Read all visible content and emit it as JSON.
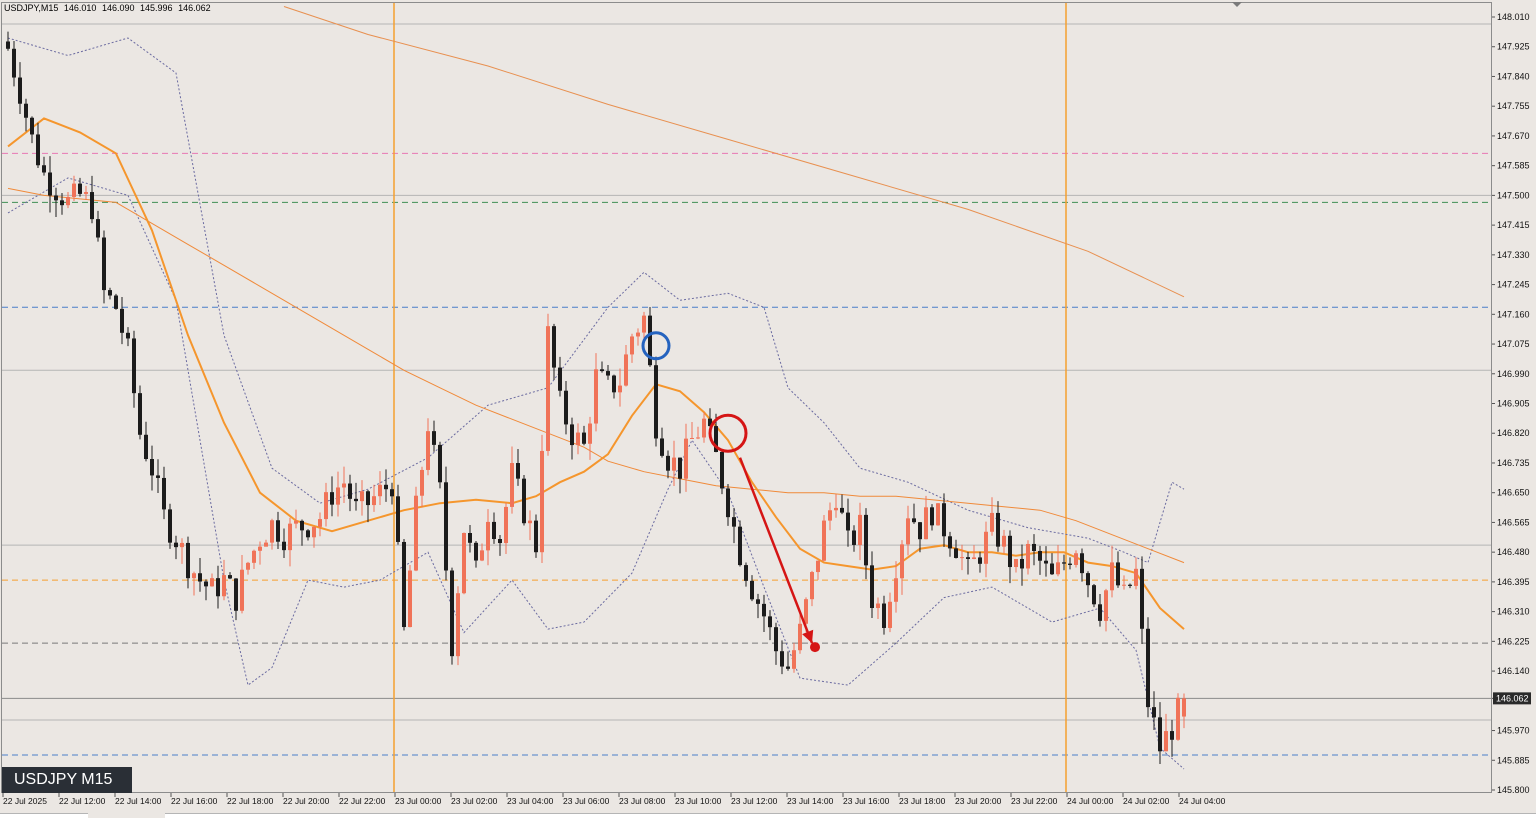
{
  "header": {
    "symbol": "USDJPY,M15",
    "open": "146.010",
    "high": "146.090",
    "low": "145.996",
    "close": "146.062"
  },
  "badge": "USDJPY M15",
  "current_price_label": "146.062",
  "colors": {
    "background": "#ebe7e3",
    "bull": "#f07358",
    "bear": "#1c1c1c",
    "ema_fast": "#f5962d",
    "ma_slow": "#f08a3a",
    "ma_long": "#e89050",
    "bollinger": "#6a6aa0",
    "session_line": "#f5a030",
    "annotation_red": "#d51515",
    "annotation_blue": "#2563bf"
  },
  "chart_data": {
    "type": "candlestick",
    "symbol": "USDJPY",
    "timeframe": "M15",
    "y_axis": {
      "min": 145.8,
      "max": 148.01,
      "ticks": [
        "148.010",
        "147.925",
        "147.840",
        "147.755",
        "147.670",
        "147.585",
        "147.500",
        "147.415",
        "147.330",
        "147.245",
        "147.160",
        "147.075",
        "146.990",
        "146.905",
        "146.820",
        "146.735",
        "146.650",
        "146.565",
        "146.480",
        "146.395",
        "146.310",
        "146.225",
        "146.140",
        "146.062",
        "145.970",
        "145.885",
        "145.800"
      ]
    },
    "x_axis": {
      "labels": [
        "22 Jul 2025",
        "22 Jul 12:00",
        "22 Jul 14:00",
        "22 Jul 16:00",
        "22 Jul 18:00",
        "22 Jul 20:00",
        "22 Jul 22:00",
        "23 Jul 00:00",
        "23 Jul 02:00",
        "23 Jul 04:00",
        "23 Jul 06:00",
        "23 Jul 08:00",
        "23 Jul 10:00",
        "23 Jul 12:00",
        "23 Jul 14:00",
        "23 Jul 16:00",
        "23 Jul 18:00",
        "23 Jul 20:00",
        "23 Jul 22:00",
        "24 Jul 00:00",
        "24 Jul 02:00",
        "24 Jul 04:00"
      ]
    },
    "close_path": [
      [
        0,
        147.92
      ],
      [
        2,
        147.8
      ],
      [
        4,
        147.66
      ],
      [
        6,
        147.56
      ],
      [
        8,
        147.52
      ],
      [
        10,
        147.48
      ],
      [
        12,
        147.5
      ],
      [
        14,
        147.47
      ],
      [
        16,
        147.22
      ],
      [
        18,
        147.18
      ],
      [
        20,
        147.05
      ],
      [
        22,
        146.82
      ],
      [
        24,
        146.72
      ],
      [
        26,
        146.58
      ],
      [
        28,
        146.52
      ],
      [
        30,
        146.45
      ],
      [
        32,
        146.4
      ],
      [
        34,
        146.37
      ],
      [
        36,
        146.4
      ],
      [
        38,
        146.35
      ],
      [
        40,
        146.45
      ],
      [
        42,
        146.52
      ],
      [
        44,
        146.56
      ],
      [
        46,
        146.53
      ],
      [
        48,
        146.55
      ],
      [
        50,
        146.56
      ],
      [
        52,
        146.58
      ],
      [
        54,
        146.65
      ],
      [
        56,
        146.68
      ],
      [
        58,
        146.6
      ],
      [
        60,
        146.62
      ],
      [
        62,
        146.65
      ],
      [
        64,
        146.68
      ],
      [
        66,
        146.25
      ],
      [
        68,
        146.6
      ],
      [
        70,
        146.85
      ],
      [
        72,
        146.65
      ],
      [
        74,
        146.22
      ],
      [
        76,
        146.55
      ],
      [
        78,
        146.42
      ],
      [
        80,
        146.6
      ],
      [
        82,
        146.52
      ],
      [
        84,
        146.7
      ],
      [
        86,
        146.6
      ],
      [
        88,
        146.5
      ],
      [
        90,
        147.1
      ],
      [
        92,
        146.9
      ],
      [
        94,
        146.82
      ],
      [
        96,
        146.78
      ],
      [
        98,
        146.98
      ],
      [
        100,
        146.95
      ],
      [
        102,
        146.97
      ],
      [
        104,
        147.1
      ],
      [
        106,
        147.15
      ],
      [
        108,
        146.85
      ],
      [
        110,
        146.75
      ],
      [
        112,
        146.72
      ],
      [
        114,
        146.8
      ],
      [
        116,
        146.85
      ],
      [
        118,
        146.75
      ],
      [
        120,
        146.62
      ],
      [
        122,
        146.48
      ],
      [
        124,
        146.38
      ],
      [
        126,
        146.3
      ],
      [
        128,
        146.2
      ],
      [
        130,
        146.15
      ],
      [
        132,
        146.25
      ],
      [
        134,
        146.4
      ],
      [
        136,
        146.55
      ],
      [
        138,
        146.65
      ],
      [
        140,
        146.5
      ],
      [
        142,
        146.55
      ],
      [
        144,
        146.35
      ],
      [
        146,
        146.3
      ],
      [
        148,
        146.45
      ],
      [
        150,
        146.6
      ],
      [
        152,
        146.55
      ],
      [
        154,
        146.6
      ],
      [
        156,
        146.55
      ],
      [
        158,
        146.5
      ],
      [
        160,
        146.42
      ],
      [
        162,
        146.48
      ],
      [
        164,
        146.55
      ],
      [
        166,
        146.5
      ],
      [
        168,
        146.42
      ],
      [
        170,
        146.48
      ],
      [
        172,
        146.45
      ],
      [
        174,
        146.4
      ],
      [
        176,
        146.45
      ],
      [
        178,
        146.5
      ],
      [
        180,
        146.4
      ],
      [
        182,
        146.32
      ],
      [
        184,
        146.42
      ],
      [
        186,
        146.35
      ],
      [
        188,
        146.42
      ],
      [
        190,
        146.05
      ],
      [
        192,
        145.92
      ],
      [
        194,
        145.98
      ],
      [
        196,
        146.06
      ]
    ],
    "bollinger_upper": [
      [
        0,
        147.95
      ],
      [
        10,
        147.9
      ],
      [
        20,
        147.95
      ],
      [
        28,
        147.85
      ],
      [
        36,
        147.1
      ],
      [
        44,
        146.72
      ],
      [
        52,
        146.62
      ],
      [
        60,
        146.66
      ],
      [
        70,
        146.75
      ],
      [
        80,
        146.9
      ],
      [
        90,
        146.95
      ],
      [
        100,
        147.18
      ],
      [
        106,
        147.28
      ],
      [
        112,
        147.2
      ],
      [
        120,
        147.22
      ],
      [
        126,
        147.18
      ],
      [
        130,
        146.95
      ],
      [
        136,
        146.85
      ],
      [
        142,
        146.72
      ],
      [
        150,
        146.68
      ],
      [
        160,
        146.6
      ],
      [
        170,
        146.55
      ],
      [
        180,
        146.52
      ],
      [
        186,
        146.48
      ],
      [
        190,
        146.45
      ],
      [
        194,
        146.68
      ],
      [
        196,
        146.66
      ]
    ],
    "bollinger_lower": [
      [
        0,
        147.45
      ],
      [
        10,
        147.55
      ],
      [
        20,
        147.5
      ],
      [
        28,
        147.2
      ],
      [
        36,
        146.4
      ],
      [
        40,
        146.1
      ],
      [
        44,
        146.15
      ],
      [
        50,
        146.4
      ],
      [
        56,
        146.38
      ],
      [
        62,
        146.4
      ],
      [
        70,
        146.48
      ],
      [
        76,
        146.25
      ],
      [
        84,
        146.4
      ],
      [
        90,
        146.26
      ],
      [
        96,
        146.28
      ],
      [
        104,
        146.42
      ],
      [
        110,
        146.66
      ],
      [
        114,
        146.8
      ],
      [
        120,
        146.65
      ],
      [
        126,
        146.38
      ],
      [
        132,
        146.12
      ],
      [
        140,
        146.1
      ],
      [
        148,
        146.22
      ],
      [
        156,
        146.35
      ],
      [
        164,
        146.38
      ],
      [
        174,
        146.28
      ],
      [
        182,
        146.32
      ],
      [
        188,
        146.2
      ],
      [
        192,
        145.92
      ],
      [
        196,
        145.86
      ]
    ],
    "ema_fast": [
      [
        0,
        147.64
      ],
      [
        6,
        147.72
      ],
      [
        12,
        147.68
      ],
      [
        18,
        147.62
      ],
      [
        24,
        147.4
      ],
      [
        30,
        147.1
      ],
      [
        36,
        146.85
      ],
      [
        42,
        146.65
      ],
      [
        48,
        146.57
      ],
      [
        54,
        146.54
      ],
      [
        60,
        146.57
      ],
      [
        66,
        146.6
      ],
      [
        72,
        146.62
      ],
      [
        78,
        146.63
      ],
      [
        84,
        146.62
      ],
      [
        88,
        146.64
      ],
      [
        92,
        146.68
      ],
      [
        96,
        146.71
      ],
      [
        100,
        146.76
      ],
      [
        104,
        146.87
      ],
      [
        108,
        146.96
      ],
      [
        112,
        146.94
      ],
      [
        116,
        146.88
      ],
      [
        120,
        146.8
      ],
      [
        124,
        146.68
      ],
      [
        128,
        146.58
      ],
      [
        132,
        146.49
      ],
      [
        136,
        146.45
      ],
      [
        140,
        146.44
      ],
      [
        144,
        146.43
      ],
      [
        148,
        146.44
      ],
      [
        152,
        146.49
      ],
      [
        156,
        146.5
      ],
      [
        160,
        146.48
      ],
      [
        164,
        146.48
      ],
      [
        168,
        146.47
      ],
      [
        172,
        146.48
      ],
      [
        176,
        146.48
      ],
      [
        180,
        146.45
      ],
      [
        184,
        146.44
      ],
      [
        188,
        146.42
      ],
      [
        192,
        146.32
      ],
      [
        196,
        146.26
      ]
    ],
    "ma_slow": [
      [
        0,
        147.52
      ],
      [
        6,
        147.5
      ],
      [
        12,
        147.49
      ],
      [
        18,
        147.48
      ],
      [
        24,
        147.42
      ],
      [
        30,
        147.36
      ],
      [
        36,
        147.3
      ],
      [
        42,
        147.24
      ],
      [
        48,
        147.18
      ],
      [
        54,
        147.12
      ],
      [
        60,
        147.06
      ],
      [
        66,
        147.0
      ],
      [
        72,
        146.95
      ],
      [
        78,
        146.9
      ],
      [
        84,
        146.86
      ],
      [
        90,
        146.82
      ],
      [
        96,
        146.78
      ],
      [
        100,
        146.74
      ],
      [
        106,
        146.71
      ],
      [
        112,
        146.69
      ],
      [
        118,
        146.67
      ],
      [
        124,
        146.66
      ],
      [
        130,
        146.65
      ],
      [
        136,
        146.65
      ],
      [
        142,
        146.64
      ],
      [
        148,
        146.64
      ],
      [
        154,
        146.63
      ],
      [
        160,
        146.62
      ],
      [
        166,
        146.61
      ],
      [
        172,
        146.6
      ],
      [
        178,
        146.57
      ],
      [
        184,
        146.53
      ],
      [
        190,
        146.49
      ],
      [
        196,
        146.45
      ]
    ],
    "ma_long": [
      [
        46,
        148.04
      ],
      [
        60,
        147.96
      ],
      [
        80,
        147.87
      ],
      [
        100,
        147.76
      ],
      [
        120,
        147.66
      ],
      [
        140,
        147.56
      ],
      [
        160,
        147.46
      ],
      [
        180,
        147.34
      ],
      [
        196,
        147.21
      ]
    ],
    "horizontal_levels": [
      {
        "price": 147.62,
        "color": "#e879b4",
        "style": "dashed"
      },
      {
        "price": 147.48,
        "color": "#3f8f55",
        "style": "dashed"
      },
      {
        "price": 147.18,
        "color": "#4b7fc9",
        "style": "dashed"
      },
      {
        "price": 146.4,
        "color": "#f5a030",
        "style": "dashed"
      },
      {
        "price": 146.22,
        "color": "#7a7a7a",
        "style": "dashed"
      },
      {
        "price": 145.9,
        "color": "#4b7fc9",
        "style": "dashed"
      },
      {
        "price": 147.99,
        "color": "#b5b5b5",
        "style": "solid"
      },
      {
        "price": 147.5,
        "color": "#b5b5b5",
        "style": "solid"
      },
      {
        "price": 147.0,
        "color": "#b5b5b5",
        "style": "solid"
      },
      {
        "price": 146.5,
        "color": "#b5b5b5",
        "style": "solid"
      },
      {
        "price": 146.0,
        "color": "#b5b5b5",
        "style": "solid"
      },
      {
        "price": 146.062,
        "color": "#8a8a8a",
        "style": "solid"
      }
    ],
    "session_lines": [
      "23 Jul 00:00",
      "24 Jul 00:00"
    ],
    "annotations": [
      {
        "type": "circle",
        "color": "blue",
        "bar": 108,
        "price": 147.07
      },
      {
        "type": "circle",
        "color": "red",
        "bar": 120,
        "price": 146.82
      },
      {
        "type": "arrow",
        "color": "red",
        "from_bar": 122,
        "from_price": 146.75,
        "to_bar": 134,
        "to_price": 146.22
      }
    ]
  }
}
